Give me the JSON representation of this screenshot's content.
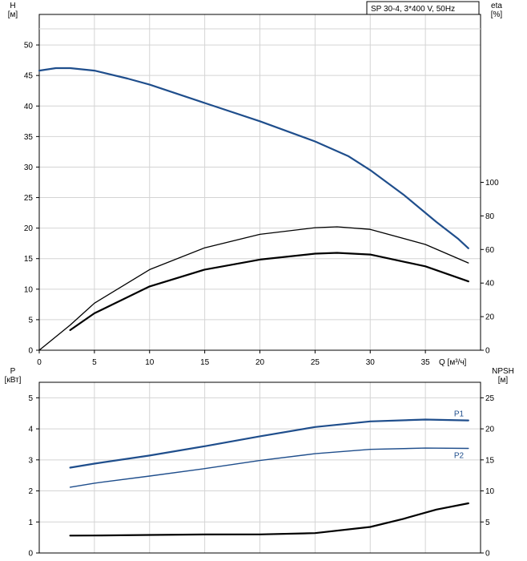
{
  "chart_data": [
    {
      "type": "line",
      "title": "SP 30-4, 3*400 V, 50Hz",
      "left_axis": {
        "label": "H",
        "unit": "[м]",
        "ticks": [
          "0",
          "5",
          "10",
          "15",
          "20",
          "25",
          "30",
          "35",
          "40",
          "45",
          "50"
        ],
        "ylim": [
          0,
          55
        ]
      },
      "right_axis": {
        "label": "eta",
        "unit": "[%]",
        "ticks": [
          "0",
          "20",
          "40",
          "60",
          "80",
          "100"
        ],
        "ylim": [
          0,
          200
        ]
      },
      "x_axis": {
        "label": "Q [м³/ч]",
        "ticks": [
          "0",
          "5",
          "10",
          "15",
          "20",
          "25",
          "30",
          "35"
        ],
        "xlim": [
          0,
          40
        ]
      },
      "grid": true,
      "series": [
        {
          "color": "#1f4e8c",
          "axis": "left",
          "width": 2.2,
          "x": [
            0,
            1.5,
            2.8,
            5,
            8,
            10,
            15,
            20,
            25,
            28,
            30,
            33,
            36,
            38,
            38.9
          ],
          "y": [
            45.8,
            46.2,
            46.2,
            45.8,
            44.5,
            43.5,
            40.5,
            37.5,
            34.2,
            31.8,
            29.5,
            25.5,
            21.0,
            18.2,
            16.7
          ]
        },
        {
          "color": "#000000",
          "axis": "right",
          "width": 1.3,
          "x": [
            0,
            2.8,
            5,
            10,
            15,
            20,
            25,
            27,
            30,
            35,
            38.9
          ],
          "y": [
            0,
            15,
            28,
            48,
            61,
            69,
            73,
            73.5,
            72,
            63,
            52
          ]
        },
        {
          "color": "#000000",
          "axis": "right",
          "width": 2.2,
          "x": [
            2.8,
            5,
            10,
            15,
            20,
            25,
            27,
            30,
            35,
            38.9
          ],
          "y": [
            12,
            22,
            38,
            48,
            54,
            57.5,
            58,
            57,
            50,
            41
          ]
        }
      ]
    },
    {
      "type": "line",
      "left_axis": {
        "label": "P",
        "unit": "[кВт]",
        "ticks": [
          "0",
          "1",
          "2",
          "3",
          "4",
          "5"
        ],
        "ylim": [
          0,
          5.5
        ]
      },
      "right_axis": {
        "label": "NPSH",
        "unit": "[м]",
        "ticks": [
          "0",
          "5",
          "10",
          "15",
          "20",
          "25"
        ],
        "ylim": [
          0,
          27.5
        ]
      },
      "x_axis": {
        "xlim": [
          0,
          40
        ]
      },
      "grid": true,
      "series": [
        {
          "name": "P1",
          "color": "#1f4e8c",
          "axis": "left",
          "width": 2.2,
          "x": [
            2.8,
            5,
            10,
            15,
            20,
            25,
            30,
            35,
            38.9
          ],
          "y": [
            2.75,
            2.88,
            3.14,
            3.44,
            3.76,
            4.06,
            4.24,
            4.3,
            4.27
          ]
        },
        {
          "name": "P2",
          "color": "#1f4e8c",
          "axis": "left",
          "width": 1.4,
          "x": [
            2.8,
            5,
            10,
            15,
            20,
            25,
            30,
            35,
            38.9
          ],
          "y": [
            2.12,
            2.25,
            2.48,
            2.72,
            2.98,
            3.2,
            3.34,
            3.38,
            3.37
          ]
        },
        {
          "color": "#000000",
          "axis": "right",
          "width": 2.2,
          "x": [
            2.8,
            5,
            10,
            15,
            20,
            25,
            30,
            33,
            36,
            38.9
          ],
          "y": [
            2.8,
            2.82,
            2.9,
            2.98,
            3.0,
            3.2,
            4.2,
            5.5,
            7.0,
            8.0
          ]
        }
      ]
    }
  ]
}
